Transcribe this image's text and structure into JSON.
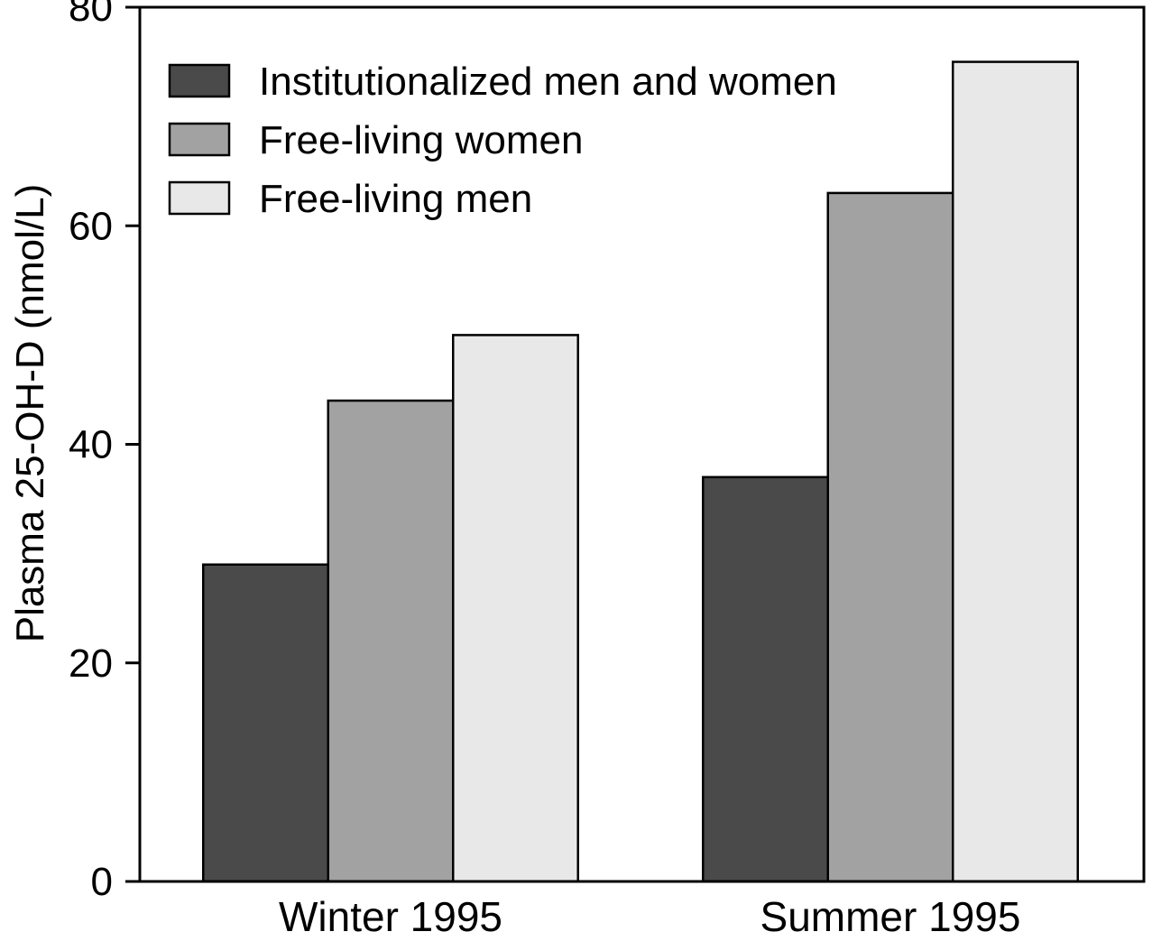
{
  "chart_data": {
    "type": "bar",
    "title": "",
    "xlabel": "",
    "ylabel": "Plasma 25-OH-D (nmol/L)",
    "ylim": [
      0,
      80
    ],
    "yticks": [
      0,
      20,
      40,
      60,
      80
    ],
    "categories": [
      "Winter 1995",
      "Summer 1995"
    ],
    "series": [
      {
        "name": "Institutionalized men and women",
        "color": "#4a4a4a",
        "values": [
          29,
          37
        ]
      },
      {
        "name": "Free-living women",
        "color": "#a2a2a2",
        "values": [
          44,
          63
        ]
      },
      {
        "name": "Free-living men",
        "color": "#e8e8e8",
        "values": [
          50,
          75
        ]
      }
    ],
    "grid": false,
    "legend_position": "top-left"
  }
}
